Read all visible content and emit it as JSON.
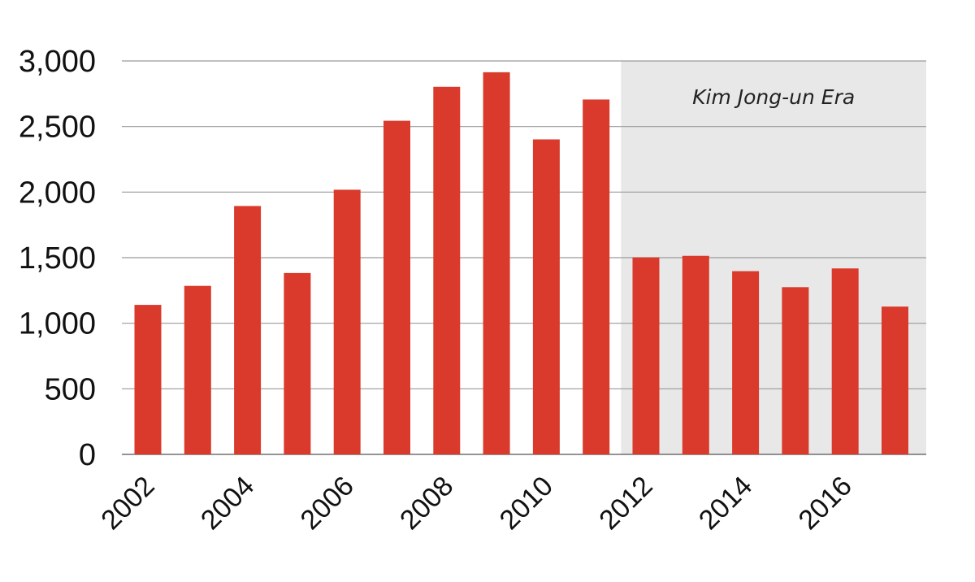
{
  "chart_data": {
    "type": "bar",
    "title": "",
    "xlabel": "",
    "ylabel": "",
    "categories": [
      "2002",
      "2003",
      "2004",
      "2005",
      "2006",
      "2007",
      "2008",
      "2009",
      "2010",
      "2011",
      "2012",
      "2013",
      "2014",
      "2015",
      "2016",
      "2017"
    ],
    "values": [
      1140,
      1285,
      1894,
      1383,
      2018,
      2544,
      2803,
      2914,
      2402,
      2706,
      1502,
      1514,
      1397,
      1275,
      1418,
      1127
    ],
    "ylim": [
      0,
      3000
    ],
    "yticks": [
      0,
      500,
      1000,
      1500,
      2000,
      2500,
      3000
    ],
    "ytick_labels": [
      "0",
      "500",
      "1,000",
      "1,500",
      "2,000",
      "2,500",
      "3,000"
    ],
    "xtick_labels": [
      "2002",
      "2004",
      "2006",
      "2008",
      "2010",
      "2012",
      "2014",
      "2016"
    ],
    "grid": true,
    "bar_color": "#d93a2b",
    "highlight": {
      "label": "Kim Jong-un Era",
      "start": "2012",
      "end": "2017",
      "color": "#e8e8e8"
    }
  }
}
